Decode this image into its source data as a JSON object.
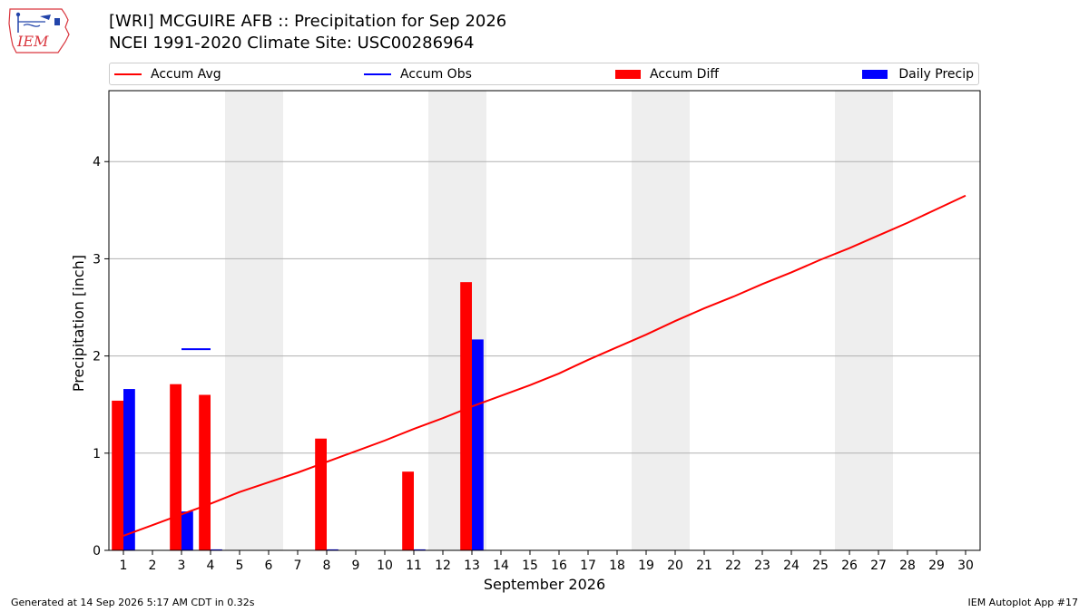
{
  "header": {
    "title_line1": "[WRI] MCGUIRE AFB :: Precipitation for Sep 2026",
    "title_line2": "NCEI 1991-2020 Climate Site: USC00286964"
  },
  "logo": {
    "text": "IEM",
    "icon": "iem-iowa-logo-icon"
  },
  "legend": {
    "placement": "top",
    "items": [
      {
        "label": "Accum Avg",
        "color": "#ff0000",
        "kind": "line"
      },
      {
        "label": "Accum Obs",
        "color": "#0000ff",
        "kind": "line"
      },
      {
        "label": "Accum Diff",
        "color": "#ff0000",
        "kind": "bar"
      },
      {
        "label": "Daily Precip",
        "color": "#0000ff",
        "kind": "bar"
      }
    ]
  },
  "footer": {
    "generated": "Generated at 14 Sep 2026 5:17 AM CDT in 0.32s",
    "app": "IEM Autoplot App #17"
  },
  "chart_data": {
    "type": "bar",
    "xlabel": "September 2026",
    "ylabel": "Precipitation [inch]",
    "xlim": [
      0.5,
      30.5
    ],
    "ylim": [
      0,
      4.73
    ],
    "x": [
      1,
      2,
      3,
      4,
      5,
      6,
      7,
      8,
      9,
      10,
      11,
      12,
      13,
      14,
      15,
      16,
      17,
      18,
      19,
      20,
      21,
      22,
      23,
      24,
      25,
      26,
      27,
      28,
      29,
      30
    ],
    "x_tick_labels": [
      "1",
      "2",
      "3",
      "4",
      "5",
      "6",
      "7",
      "8",
      "9",
      "10",
      "11",
      "12",
      "13",
      "14",
      "15",
      "16",
      "17",
      "18",
      "19",
      "20",
      "21",
      "22",
      "23",
      "24",
      "25",
      "26",
      "27",
      "28",
      "29",
      "30"
    ],
    "y_ticks": [
      0,
      1,
      2,
      3,
      4
    ],
    "y_tick_labels": [
      "0",
      "1",
      "2",
      "3",
      "4"
    ],
    "grid": "y",
    "weekend_shading": [
      [
        4.5,
        6.5
      ],
      [
        11.5,
        13.5
      ],
      [
        18.5,
        20.5
      ],
      [
        25.5,
        27.5
      ]
    ],
    "series": [
      {
        "name": "Accum Avg",
        "type": "line",
        "color": "#ff0000",
        "values": [
          0.15,
          0.26,
          0.37,
          0.48,
          0.6,
          0.7,
          0.8,
          0.91,
          1.02,
          1.13,
          1.25,
          1.36,
          1.48,
          1.59,
          1.7,
          1.82,
          1.96,
          2.09,
          2.22,
          2.36,
          2.49,
          2.61,
          2.74,
          2.86,
          2.99,
          3.11,
          3.24,
          3.37,
          3.51,
          3.65
        ]
      },
      {
        "name": "Accum Obs",
        "type": "step",
        "color": "#0000ff",
        "segments": [
          {
            "x": [
              3,
              4
            ],
            "y": 2.07
          }
        ]
      },
      {
        "name": "Accum Diff",
        "type": "bar",
        "color": "#ff0000",
        "values": [
          1.54,
          null,
          1.71,
          1.6,
          null,
          null,
          null,
          1.15,
          null,
          null,
          0.81,
          null,
          2.76,
          null,
          null,
          null,
          null,
          null,
          null,
          null,
          null,
          null,
          null,
          null,
          null,
          null,
          null,
          null,
          null,
          null
        ]
      },
      {
        "name": "Daily Precip",
        "type": "bar",
        "color": "#0000ff",
        "values": [
          1.66,
          null,
          0.4,
          0.01,
          null,
          null,
          null,
          0.01,
          null,
          null,
          0.01,
          null,
          2.17,
          null,
          null,
          null,
          null,
          null,
          null,
          null,
          null,
          null,
          null,
          null,
          null,
          null,
          null,
          null,
          null,
          null
        ]
      }
    ]
  }
}
